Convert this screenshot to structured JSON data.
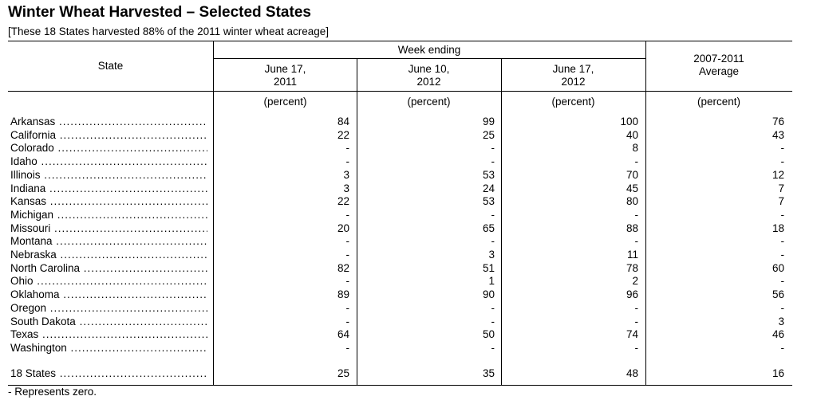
{
  "title": "Winter Wheat Harvested – Selected States",
  "subtitle": "[These 18 States harvested 88% of the 2011 winter wheat acreage]",
  "headers": {
    "state": "State",
    "week_ending": "Week ending",
    "col1_line1": "June 17,",
    "col1_line2": "2011",
    "col2_line1": "June 10,",
    "col2_line2": "2012",
    "col3_line1": "June 17,",
    "col3_line2": "2012",
    "col4_line1": "2007-2011",
    "col4_line2": "Average"
  },
  "units": [
    "(percent)",
    "(percent)",
    "(percent)",
    "(percent)"
  ],
  "rows": [
    {
      "state": "Arkansas",
      "v": [
        "84",
        "99",
        "100",
        "76"
      ]
    },
    {
      "state": "California",
      "v": [
        "22",
        "25",
        "40",
        "43"
      ]
    },
    {
      "state": "Colorado",
      "v": [
        "-",
        "-",
        "8",
        "-"
      ]
    },
    {
      "state": "Idaho",
      "v": [
        "-",
        "-",
        "-",
        "-"
      ]
    },
    {
      "state": "Illinois",
      "v": [
        "3",
        "53",
        "70",
        "12"
      ]
    },
    {
      "state": "Indiana",
      "v": [
        "3",
        "24",
        "45",
        "7"
      ]
    },
    {
      "state": "Kansas",
      "v": [
        "22",
        "53",
        "80",
        "7"
      ]
    },
    {
      "state": "Michigan",
      "v": [
        "-",
        "-",
        "-",
        "-"
      ]
    },
    {
      "state": "Missouri",
      "v": [
        "20",
        "65",
        "88",
        "18"
      ]
    },
    {
      "state": "Montana",
      "v": [
        "-",
        "-",
        "-",
        "-"
      ]
    },
    {
      "state": "Nebraska",
      "v": [
        "-",
        "3",
        "11",
        "-"
      ]
    },
    {
      "state": "North Carolina",
      "v": [
        "82",
        "51",
        "78",
        "60"
      ]
    },
    {
      "state": "Ohio",
      "v": [
        "-",
        "1",
        "2",
        "-"
      ]
    },
    {
      "state": "Oklahoma",
      "v": [
        "89",
        "90",
        "96",
        "56"
      ]
    },
    {
      "state": "Oregon",
      "v": [
        "-",
        "-",
        "-",
        "-"
      ]
    },
    {
      "state": "South Dakota",
      "v": [
        "-",
        "-",
        "-",
        "3"
      ]
    },
    {
      "state": "Texas",
      "v": [
        "64",
        "50",
        "74",
        "46"
      ]
    },
    {
      "state": "Washington",
      "v": [
        "-",
        "-",
        "-",
        "-"
      ]
    }
  ],
  "total": {
    "state": "18 States",
    "v": [
      "25",
      "35",
      "48",
      "16"
    ]
  },
  "footnote": "- Represents zero."
}
